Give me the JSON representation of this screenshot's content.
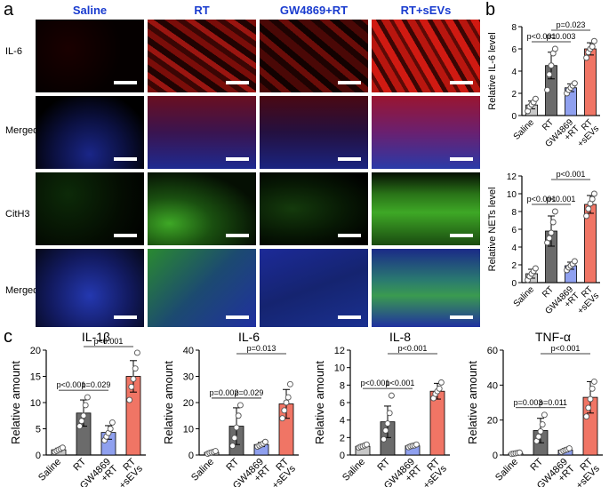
{
  "panel_labels": {
    "a": "a",
    "b": "b",
    "c": "c"
  },
  "micrograph": {
    "columns": [
      "Saline",
      "RT",
      "GW4869+RT",
      "RT+sEVs"
    ],
    "rows": [
      "IL-6",
      "Merged",
      "CitH3",
      "Merged"
    ],
    "colors": {
      "il6": "#c41a12",
      "merged_nuclei": "#2233aa",
      "cith3": "#3ea826",
      "scale_bar": "#ffffff"
    }
  },
  "colors": {
    "saline": "#c8c8c8",
    "rt": "#6b6b6b",
    "gw": "#8fa0ef",
    "rtsevs": "#f07565"
  },
  "chart_data": [
    {
      "id": "b1",
      "type": "bar",
      "ylabel": "Relative IL-6 level",
      "categories": [
        "Saline",
        "RT",
        "GW4869\n+RT",
        "RT\n+sEVs"
      ],
      "values": [
        0.95,
        4.5,
        2.5,
        6.0
      ],
      "errors": [
        0.35,
        1.2,
        0.35,
        0.55
      ],
      "points": [
        [
          0.4,
          0.8,
          1.0,
          1.2,
          1.5
        ],
        [
          2.3,
          3.7,
          4.5,
          5.6,
          6.0
        ],
        [
          2.0,
          2.3,
          2.5,
          2.7,
          2.9
        ],
        [
          5.2,
          5.7,
          6.0,
          6.2,
          6.7
        ]
      ],
      "ylim": [
        0,
        8
      ],
      "yticks": [
        0,
        2,
        4,
        6,
        8
      ],
      "annotations": [
        {
          "from": 0,
          "to": 1,
          "text": "p<0.001"
        },
        {
          "from": 1,
          "to": 2,
          "text": "p=0.003"
        },
        {
          "from": 1,
          "to": 3,
          "text": "p=0.023"
        }
      ]
    },
    {
      "id": "b2",
      "type": "bar",
      "ylabel": "Relative NETs level",
      "categories": [
        "Saline",
        "RT",
        "GW4869\n+RT",
        "RT\n+sEVs"
      ],
      "values": [
        1.0,
        5.8,
        1.9,
        8.8
      ],
      "errors": [
        0.5,
        1.7,
        0.4,
        1.0
      ],
      "points": [
        [
          0.3,
          0.7,
          1.0,
          1.3,
          1.6
        ],
        [
          4.5,
          5.0,
          5.6,
          6.8,
          8.0
        ],
        [
          1.4,
          1.7,
          1.9,
          2.1,
          2.4
        ],
        [
          7.5,
          8.3,
          8.9,
          9.4,
          10.0
        ]
      ],
      "ylim": [
        0,
        12
      ],
      "yticks": [
        0,
        2,
        4,
        6,
        8,
        10,
        12
      ],
      "annotations": [
        {
          "from": 0,
          "to": 1,
          "text": "p<0.001"
        },
        {
          "from": 1,
          "to": 2,
          "text": "p<0.001"
        },
        {
          "from": 1,
          "to": 3,
          "text": "p<0.001"
        }
      ]
    },
    {
      "id": "c1",
      "type": "bar",
      "title": "IL-1β",
      "ylabel": "Relative amount",
      "categories": [
        "Saline",
        "RT",
        "GW4869\n+RT",
        "RT\n+sEVs"
      ],
      "values": [
        1.0,
        8.0,
        4.3,
        15.0
      ],
      "errors": [
        0.3,
        2.5,
        1.3,
        3.0
      ],
      "points": [
        [
          0.6,
          0.8,
          1.0,
          1.2,
          1.4
        ],
        [
          5.5,
          6.5,
          7.5,
          9.5,
          11.0
        ],
        [
          2.8,
          3.5,
          4.2,
          5.0,
          6.2
        ],
        [
          10.5,
          13.0,
          14.5,
          16.5,
          19.5
        ]
      ],
      "ylim": [
        0,
        20
      ],
      "yticks": [
        0,
        5,
        10,
        15,
        20
      ],
      "annotations": [
        {
          "from": 0,
          "to": 1,
          "text": "p<0.001"
        },
        {
          "from": 1,
          "to": 2,
          "text": "p=0.029"
        },
        {
          "from": 1,
          "to": 3,
          "text": "p<0.001"
        }
      ]
    },
    {
      "id": "c2",
      "type": "bar",
      "title": "IL-6",
      "ylabel": "Relative amount",
      "categories": [
        "Saline",
        "RT",
        "GW4869\n+RT",
        "RT\n+sEVs"
      ],
      "values": [
        1.0,
        11.0,
        4.0,
        19.5
      ],
      "errors": [
        0.3,
        7.0,
        0.8,
        5.5
      ],
      "points": [
        [
          0.5,
          0.8,
          1.0,
          1.2,
          1.5
        ],
        [
          3.5,
          6.5,
          10.5,
          15.0,
          19.0
        ],
        [
          3.2,
          3.6,
          4.0,
          4.4,
          5.0
        ],
        [
          14.0,
          17.0,
          20.0,
          22.0,
          27.0
        ]
      ],
      "ylim": [
        0,
        40
      ],
      "yticks": [
        0,
        10,
        20,
        30,
        40
      ],
      "annotations": [
        {
          "from": 0,
          "to": 1,
          "text": "p=0.002"
        },
        {
          "from": 1,
          "to": 2,
          "text": "p=0.029"
        },
        {
          "from": 1,
          "to": 3,
          "text": "p=0.013"
        }
      ]
    },
    {
      "id": "c3",
      "type": "bar",
      "title": "IL-8",
      "ylabel": "Relative amount",
      "categories": [
        "Saline",
        "RT",
        "GW4869\n+RT",
        "RT\n+sEVs"
      ],
      "values": [
        1.0,
        3.8,
        1.05,
        7.3
      ],
      "errors": [
        0.15,
        1.8,
        0.15,
        0.9
      ],
      "points": [
        [
          0.85,
          0.95,
          1.0,
          1.1,
          1.2
        ],
        [
          1.8,
          2.8,
          3.6,
          4.8,
          6.8
        ],
        [
          0.9,
          1.0,
          1.05,
          1.1,
          1.2
        ],
        [
          6.5,
          7.0,
          7.3,
          7.6,
          8.3
        ]
      ],
      "ylim": [
        0,
        12
      ],
      "yticks": [
        0,
        2,
        4,
        6,
        8,
        10,
        12
      ],
      "annotations": [
        {
          "from": 0,
          "to": 1,
          "text": "p<0.001"
        },
        {
          "from": 1,
          "to": 2,
          "text": "p<0.001"
        },
        {
          "from": 1,
          "to": 3,
          "text": "p<0.001"
        }
      ]
    },
    {
      "id": "c4",
      "type": "bar",
      "title": "TNF-α",
      "ylabel": "Relative amount",
      "categories": [
        "Saline",
        "RT",
        "GW4869\n+RT",
        "RT\n+sEVs"
      ],
      "values": [
        1.0,
        14.0,
        2.8,
        33.0
      ],
      "errors": [
        0.3,
        7.0,
        1.0,
        9.0
      ],
      "points": [
        [
          0.6,
          0.8,
          1.0,
          1.2,
          1.4
        ],
        [
          8.0,
          10.5,
          13.5,
          17.5,
          23.0
        ],
        [
          1.8,
          2.4,
          2.8,
          3.2,
          3.8
        ],
        [
          22.0,
          27.0,
          32.0,
          38.0,
          42.0
        ]
      ],
      "ylim": [
        0,
        60
      ],
      "yticks": [
        0,
        20,
        40,
        60
      ],
      "annotations": [
        {
          "from": 0,
          "to": 1,
          "text": "p=0.003"
        },
        {
          "from": 1,
          "to": 2,
          "text": "p=0.011"
        },
        {
          "from": 1,
          "to": 3,
          "text": "p<0.001"
        }
      ]
    }
  ]
}
